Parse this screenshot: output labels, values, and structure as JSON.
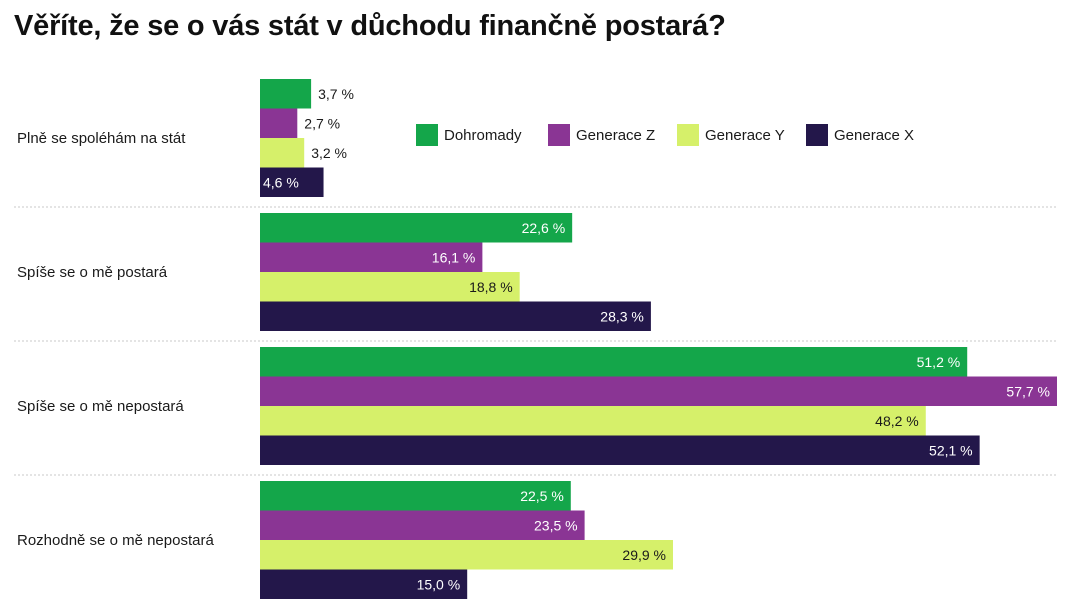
{
  "chart_data": {
    "type": "bar",
    "orientation": "horizontal",
    "title": "Věříte, že se o vás stát v důchodu finančně postará?",
    "categories": [
      "Plně se spoléhám na stát",
      "Spíše se o mě postará",
      "Spíše se o mě nepostará",
      "Rozhodně se o mě nepostará"
    ],
    "series": [
      {
        "name": "Dohromady",
        "color": "#14a64a",
        "values": [
          3.7,
          22.6,
          51.2,
          22.5
        ],
        "labels": [
          "3,7 %",
          "22,6 %",
          "51,2 %",
          "22,5 %"
        ]
      },
      {
        "name": "Generace Z",
        "color": "#8a3594",
        "values": [
          2.7,
          16.1,
          57.7,
          23.5
        ],
        "labels": [
          "2,7 %",
          "16,1 %",
          "57,7 %",
          "23,5 %"
        ]
      },
      {
        "name": "Generace Y",
        "color": "#d6f06a",
        "values": [
          3.2,
          18.8,
          48.2,
          29.9
        ],
        "labels": [
          "3,2 %",
          "18,8 %",
          "48,2 %",
          "29,9 %"
        ]
      },
      {
        "name": "Generace X",
        "color": "#23174a",
        "values": [
          4.6,
          28.3,
          52.1,
          15.0
        ],
        "labels": [
          "4,6 %",
          "28,3 %",
          "52,1 %",
          "15,0 %"
        ]
      }
    ],
    "xlim": [
      0,
      57.7
    ],
    "unit": "%",
    "grid": false,
    "legend_position": "top-right"
  }
}
